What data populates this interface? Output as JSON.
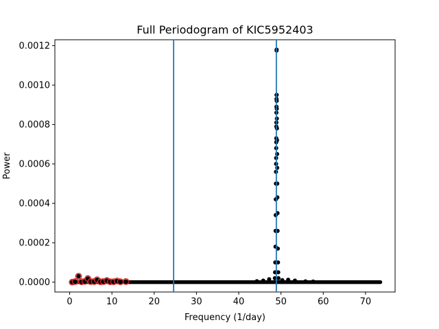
{
  "chart_data": {
    "type": "scatter",
    "title": "Full Periodogram of KIC5952403",
    "xlabel": "Frequency (1/day)",
    "ylabel": "Power",
    "xlim": [
      -3.5,
      77
    ],
    "ylim": [
      -5e-05,
      0.00123
    ],
    "xticks": [
      0,
      10,
      20,
      30,
      40,
      50,
      60,
      70
    ],
    "xtick_labels": [
      "0",
      "10",
      "20",
      "30",
      "40",
      "50",
      "60",
      "70"
    ],
    "yticks": [
      0,
      0.0002,
      0.0004,
      0.0006,
      0.0008,
      0.001,
      0.0012
    ],
    "ytick_labels": [
      "0.0000",
      "0.0002",
      "0.0004",
      "0.0006",
      "0.0008",
      "0.0010",
      "0.0012"
    ],
    "grid": false,
    "baseline": {
      "x_range": [
        0.5,
        73.5
      ],
      "y": 0,
      "color": "#000000"
    },
    "series": [
      {
        "color": "#000000",
        "points": [
          [
            48.55,
            2e-05
          ],
          [
            48.6,
            5e-05
          ],
          [
            48.65,
            0.0001
          ],
          [
            48.7,
            0.00018
          ],
          [
            48.72,
            0.00026
          ],
          [
            48.75,
            0.00034
          ],
          [
            48.77,
            0.00042
          ],
          [
            48.8,
            0.0005
          ],
          [
            48.82,
            0.00056
          ],
          [
            48.84,
            0.0006
          ],
          [
            48.85,
            0.00063
          ],
          [
            48.87,
            0.00068
          ],
          [
            48.88,
            0.00071
          ],
          [
            48.89,
            0.00073
          ],
          [
            48.9,
            0.00079
          ],
          [
            48.91,
            0.00081
          ],
          [
            48.92,
            0.00086
          ],
          [
            48.93,
            0.00089
          ],
          [
            48.94,
            0.00093
          ],
          [
            48.95,
            0.00095
          ],
          [
            48.96,
            0.001175
          ],
          [
            48.97,
            0.00118
          ],
          [
            48.98,
            0.00095
          ],
          [
            48.99,
            0.00092
          ],
          [
            49.0,
            0.00088
          ],
          [
            49.02,
            0.00083
          ],
          [
            49.04,
            0.00078
          ],
          [
            49.06,
            0.00072
          ],
          [
            49.08,
            0.00065
          ],
          [
            49.1,
            0.00058
          ],
          [
            49.12,
            0.0005
          ],
          [
            49.15,
            0.00043
          ],
          [
            49.18,
            0.00035
          ],
          [
            49.2,
            0.00026
          ],
          [
            49.25,
            0.00017
          ],
          [
            49.3,
            0.0001
          ],
          [
            49.35,
            5e-05
          ],
          [
            49.4,
            2e-05
          ],
          [
            44.3,
            5e-06
          ],
          [
            45.8,
            8e-06
          ],
          [
            47.2,
            1.5e-05
          ],
          [
            50.3,
            1e-05
          ],
          [
            51.7,
            1.2e-05
          ],
          [
            53.3,
            8e-06
          ],
          [
            55.8,
            4e-06
          ],
          [
            57.6,
            3e-06
          ]
        ]
      },
      {
        "color": "#d62728",
        "points": [
          [
            0.6,
            0.0
          ],
          [
            1.3,
            3e-06
          ],
          [
            2.1,
            3e-05
          ],
          [
            2.8,
            2e-06
          ],
          [
            3.6,
            4e-06
          ],
          [
            4.3,
            1.8e-05
          ],
          [
            5.0,
            3e-06
          ],
          [
            5.8,
            3e-06
          ],
          [
            6.5,
            1.2e-05
          ],
          [
            7.3,
            2e-06
          ],
          [
            8.0,
            3e-06
          ],
          [
            8.8,
            8e-06
          ],
          [
            9.6,
            2e-06
          ],
          [
            10.4,
            2e-06
          ],
          [
            11.2,
            6e-06
          ],
          [
            12.0,
            2e-06
          ],
          [
            13.3,
            3e-06
          ]
        ]
      }
    ],
    "vertical_lines": [
      {
        "x": 24.6,
        "color": "#1f77b4"
      },
      {
        "x": 48.9,
        "color": "#1f77b4"
      }
    ]
  }
}
